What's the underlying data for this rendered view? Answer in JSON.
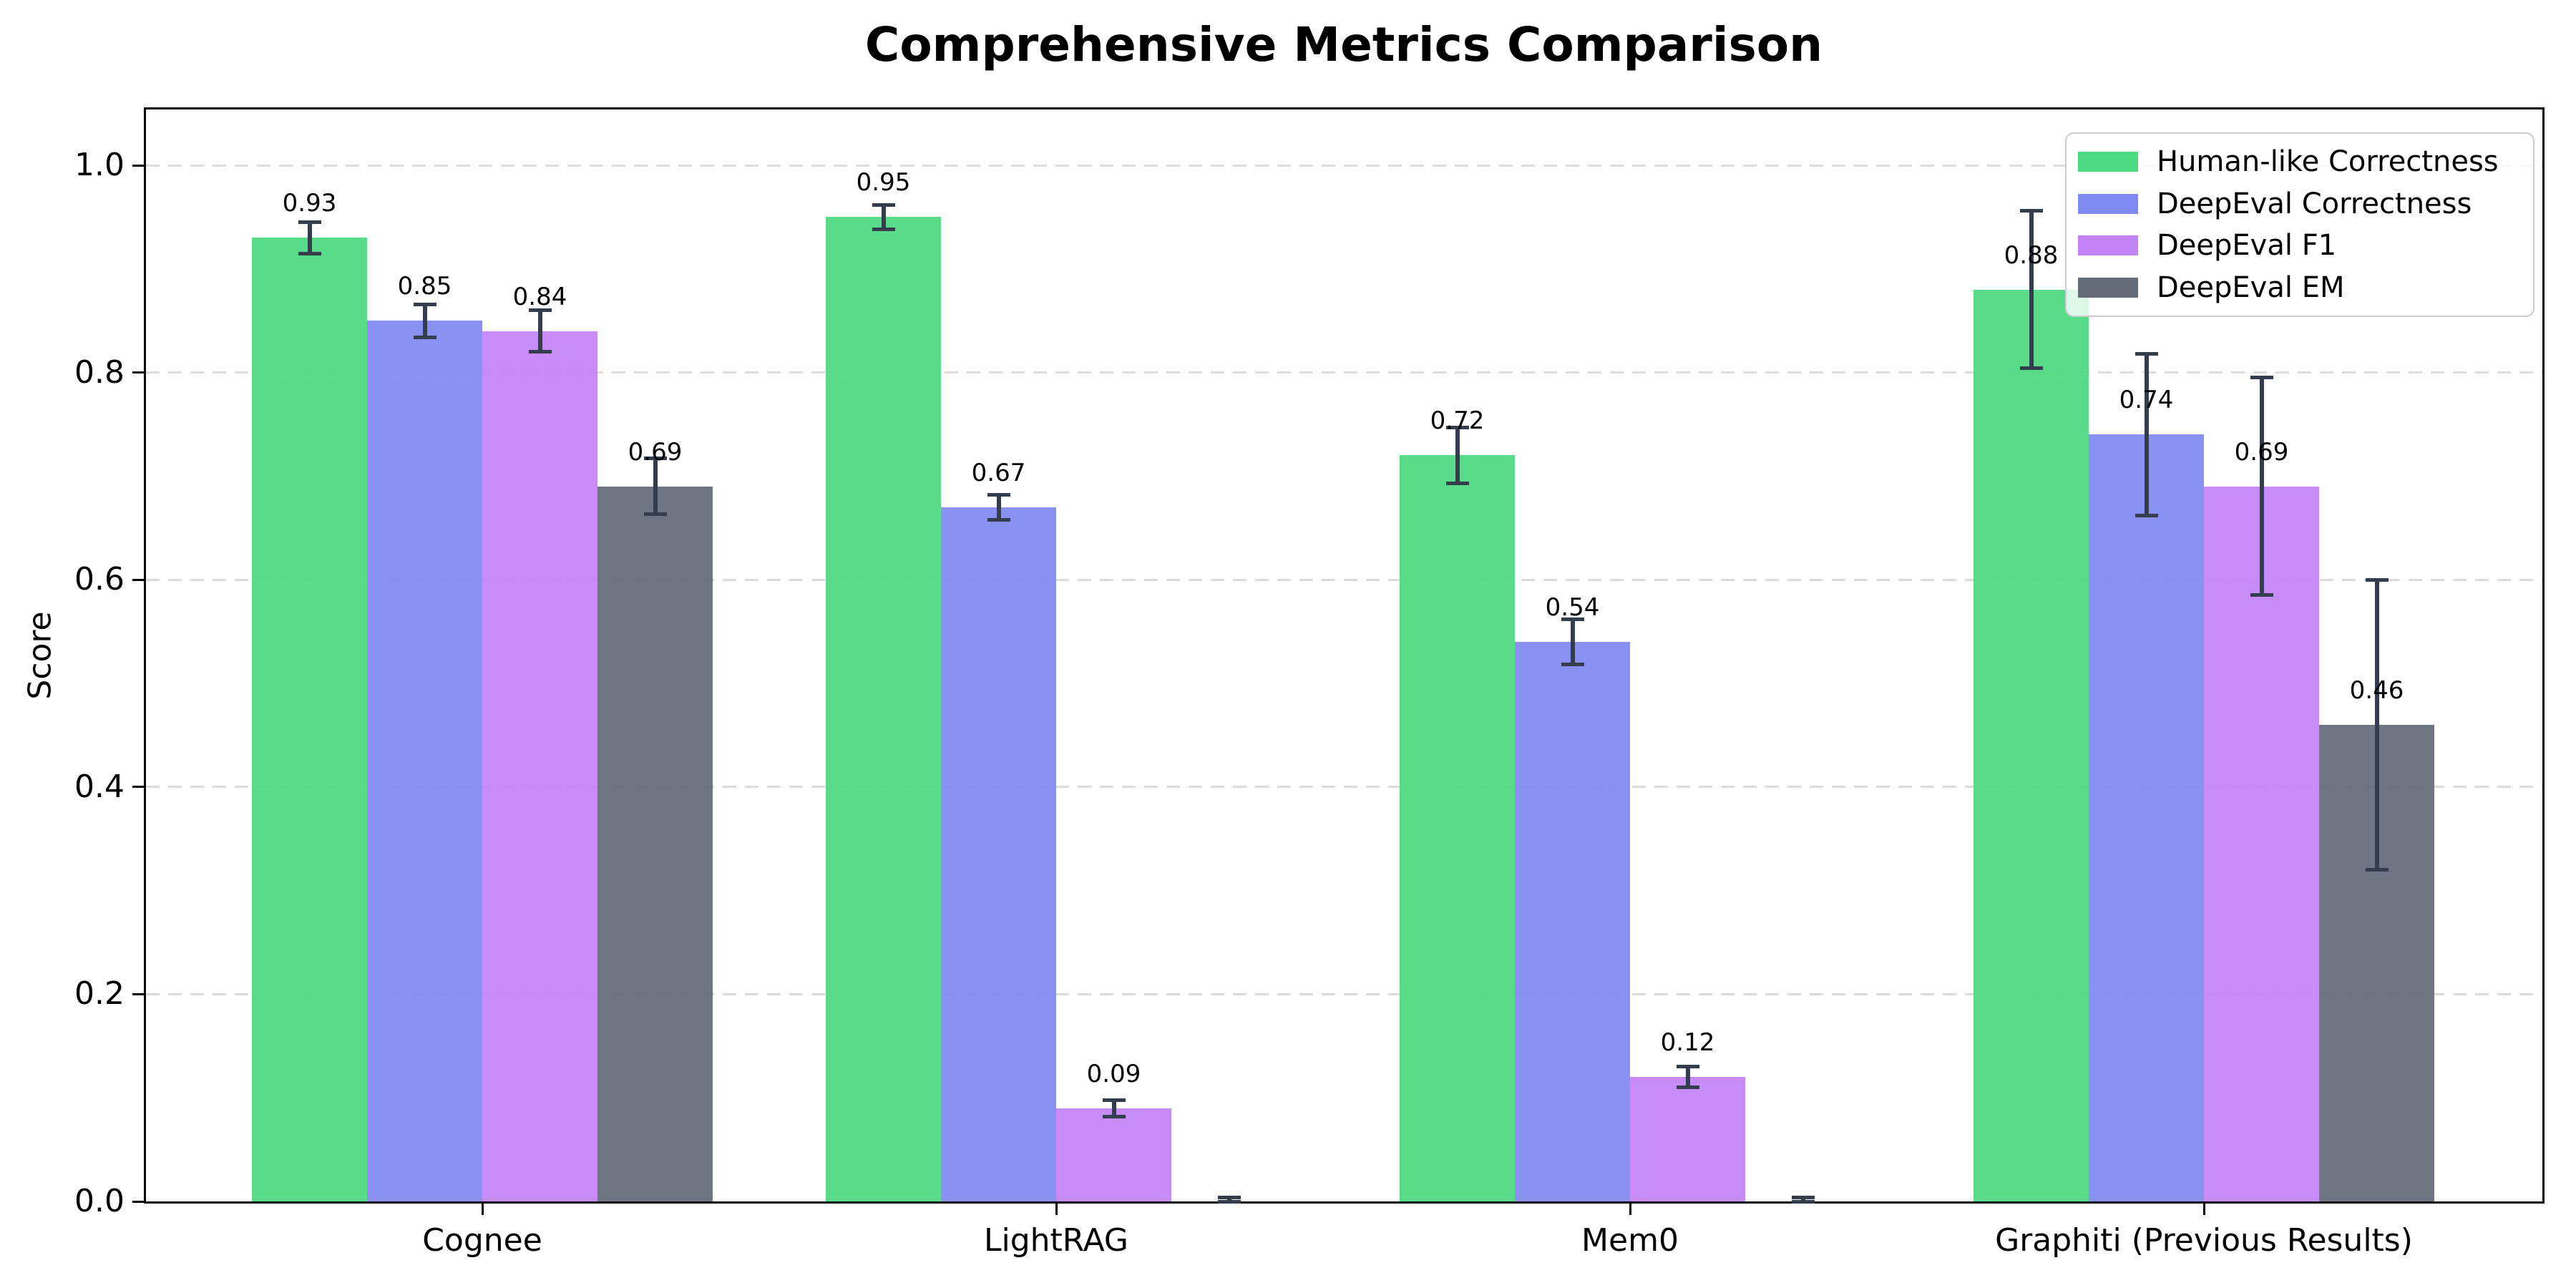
{
  "chart_data": {
    "type": "bar",
    "title": "Comprehensive Metrics Comparison",
    "ylabel": "Score",
    "xlabel": "",
    "categories": [
      "Cognee",
      "LightRAG",
      "Mem0",
      "Graphiti (Previous Results)"
    ],
    "series": [
      {
        "name": "Human-like Correctness",
        "color": "#4bd981",
        "values": [
          0.93,
          0.95,
          0.72,
          0.88
        ],
        "errors": [
          0.015,
          0.012,
          0.027,
          0.076
        ]
      },
      {
        "name": "DeepEval Correctness",
        "color": "#808af2",
        "values": [
          0.85,
          0.67,
          0.54,
          0.74
        ],
        "errors": [
          0.016,
          0.012,
          0.022,
          0.078
        ]
      },
      {
        "name": "DeepEval F1",
        "color": "#c483f7",
        "values": [
          0.84,
          0.09,
          0.12,
          0.69
        ],
        "errors": [
          0.02,
          0.008,
          0.01,
          0.105
        ]
      },
      {
        "name": "DeepEval EM",
        "color": "#646c7a",
        "values": [
          0.69,
          0.0,
          0.0,
          0.46
        ],
        "errors": [
          0.027,
          0.004,
          0.004,
          0.14
        ]
      }
    ],
    "bar_value_labels": {
      "format": "two_decimals",
      "shown_for_zero_bars": false
    },
    "yticks": [
      "0.0",
      "0.2",
      "0.4",
      "0.6",
      "0.8",
      "1.0"
    ],
    "ytick_values": [
      0.0,
      0.2,
      0.4,
      0.6,
      0.8,
      1.0
    ],
    "ylim": [
      0.0,
      1.055
    ],
    "grid": {
      "axis": "y",
      "style": "dashed",
      "color": "#dcdcdc"
    },
    "error_bar_color": "#343d4d",
    "legend_position": "upper right",
    "background_color": "#ffffff"
  }
}
